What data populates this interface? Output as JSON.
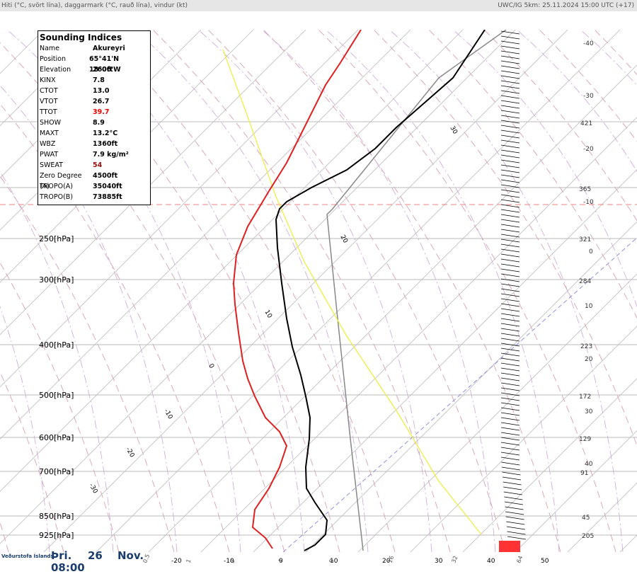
{
  "header": {
    "left": "Hiti (°C, svört lína), daggarmark (°C, rauð lína), vindur (kt)",
    "right": "UWC/IG 5km: 25.11.2024 15:00 UTC (+17)"
  },
  "indices": {
    "title": "Sounding Indices",
    "rows": [
      [
        "Name",
        "Akureyri"
      ],
      [
        "Position",
        "65°41'N 18°06'W"
      ],
      [
        "Elevation",
        "260ft"
      ],
      [
        "KINX",
        "7.8"
      ],
      [
        "CTOT",
        "13.0"
      ],
      [
        "VTOT",
        "26.7"
      ],
      [
        "TTOT",
        "39.7"
      ],
      [
        "SHOW",
        "8.9"
      ],
      [
        "MAXT",
        "13.2°C"
      ],
      [
        "WBZ",
        "1360ft"
      ],
      [
        "PWAT",
        "7.9 kg/m²"
      ],
      [
        "SWEAT",
        "54"
      ],
      [
        "Zero Degree (A)",
        "4500ft"
      ],
      [
        "TROPO(A)",
        "35040ft"
      ],
      [
        "TROPO(B)",
        "73885ft"
      ]
    ]
  },
  "pressure_labels": [
    "250[hPa]",
    "300[hPa]",
    "400[hPa]",
    "500[hPa]",
    "600[hPa]",
    "700[hPa]",
    "850[hPa]",
    "925[hPa]"
  ],
  "right_labels": [
    "-40",
    "-30",
    "421",
    "-20",
    "365",
    "-10",
    "321",
    "0",
    "284",
    "10",
    "223",
    "20",
    "172",
    "30",
    "129",
    "40",
    "91",
    "45",
    "205"
  ],
  "temperature_labels": [
    "-20",
    "-10",
    "0",
    "10",
    "20",
    "30",
    "40",
    "50"
  ],
  "mixing_labels": [
    "0.5",
    "1",
    "2",
    "4",
    "8",
    "16",
    "32",
    "64"
  ],
  "isotherm_labels": [
    "30",
    "20",
    "10",
    "0",
    "-10",
    "-20",
    "-30"
  ],
  "footer": {
    "logo": "Veðurstofa Íslands",
    "day": "Þri.",
    "date": "26",
    "month": "Nov.",
    "time": "08:00"
  }
}
